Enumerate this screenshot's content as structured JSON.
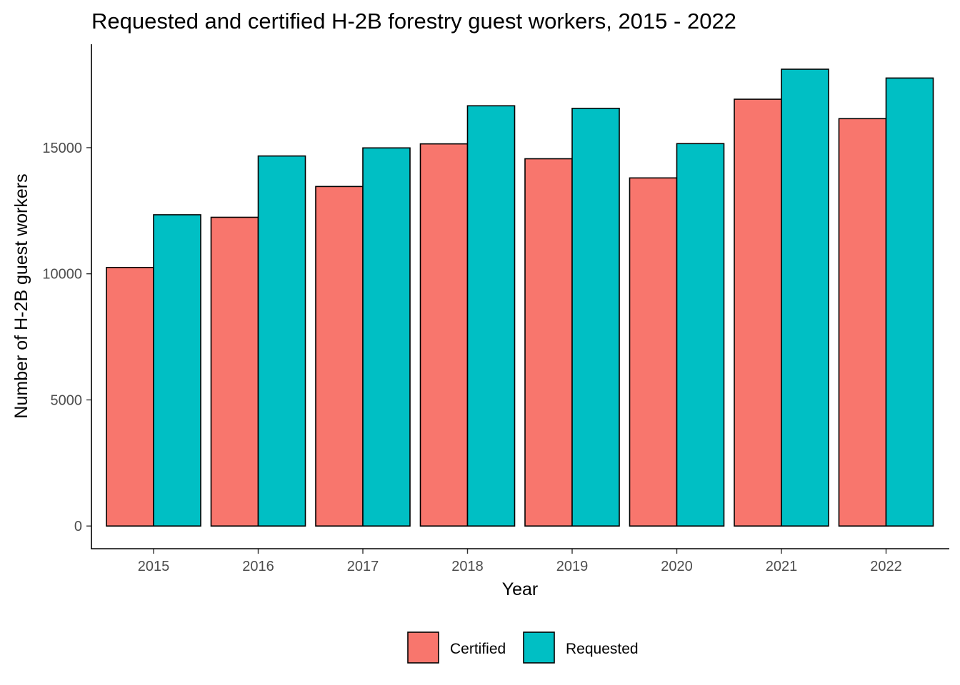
{
  "chart_data": {
    "type": "bar",
    "title": "Requested and certified H-2B forestry guest workers, 2015 - 2022",
    "xlabel": "Year",
    "ylabel": "Number of H-2B guest workers",
    "categories": [
      "2015",
      "2016",
      "2017",
      "2018",
      "2019",
      "2020",
      "2021",
      "2022"
    ],
    "series": [
      {
        "name": "Certified",
        "color": "#F8766D",
        "values": [
          10250,
          12240,
          13460,
          15150,
          14560,
          13800,
          16920,
          16150
        ]
      },
      {
        "name": "Requested",
        "color": "#00BFC4",
        "values": [
          12340,
          14670,
          14990,
          16660,
          16560,
          15160,
          18110,
          17760
        ]
      }
    ],
    "y_ticks": [
      0,
      5000,
      10000,
      15000
    ],
    "ylim": [
      -900,
      19100
    ],
    "grid": false,
    "legend_position": "bottom"
  }
}
